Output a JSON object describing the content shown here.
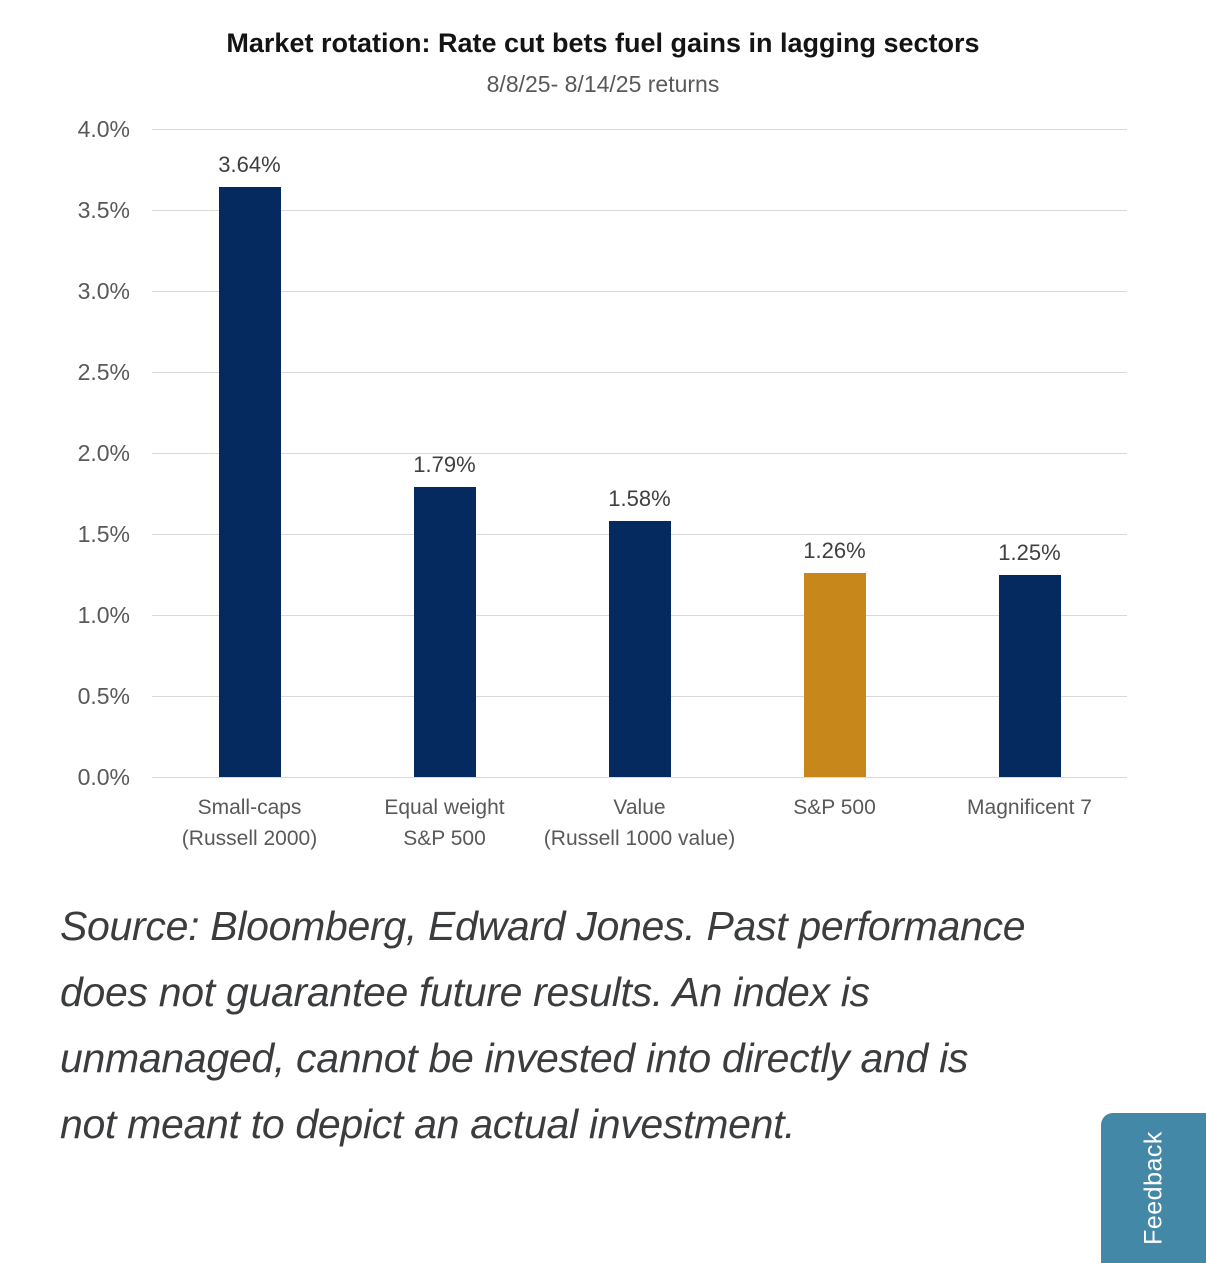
{
  "chart_data": {
    "type": "bar",
    "title": "Market rotation: Rate cut bets fuel gains in lagging sectors",
    "subtitle": "8/8/25- 8/14/25 returns",
    "categories": [
      [
        "Small-caps",
        "(Russell 2000)"
      ],
      [
        "Equal weight",
        "S&P 500"
      ],
      [
        "Value",
        "(Russell 1000 value)"
      ],
      [
        "S&P 500"
      ],
      [
        "Magnificent 7"
      ]
    ],
    "values": [
      3.64,
      1.79,
      1.58,
      1.26,
      1.25
    ],
    "value_labels": [
      "3.64%",
      "1.79%",
      "1.58%",
      "1.26%",
      "1.25%"
    ],
    "bar_colors": [
      "#052a5f",
      "#052a5f",
      "#052a5f",
      "#c8871b",
      "#052a5f"
    ],
    "yticks": [
      "0.0%",
      "0.5%",
      "1.0%",
      "1.5%",
      "2.0%",
      "2.5%",
      "3.0%",
      "3.5%",
      "4.0%"
    ],
    "ytick_values": [
      0.0,
      0.5,
      1.0,
      1.5,
      2.0,
      2.5,
      3.0,
      3.5,
      4.0
    ],
    "ylim": [
      0,
      4
    ],
    "xlabel": "",
    "ylabel": "",
    "grid": true,
    "legend": false
  },
  "footer": {
    "source_lines": [
      "Source: Bloomberg, Edward Jones. Past performance",
      "does not guarantee future results. An index is",
      "unmanaged, cannot be invested into directly and is",
      "not meant to depict an actual investment."
    ]
  },
  "feedback": {
    "label": "Feedback"
  },
  "colors": {
    "bar_navy": "#052a5f",
    "bar_gold": "#c8871b",
    "gridline": "#d9d9d9",
    "axis_text": "#595959",
    "value_text": "#404040",
    "title_text": "#141414",
    "source_text": "#3b3c3e",
    "feedback_teal": "#4389a7"
  }
}
